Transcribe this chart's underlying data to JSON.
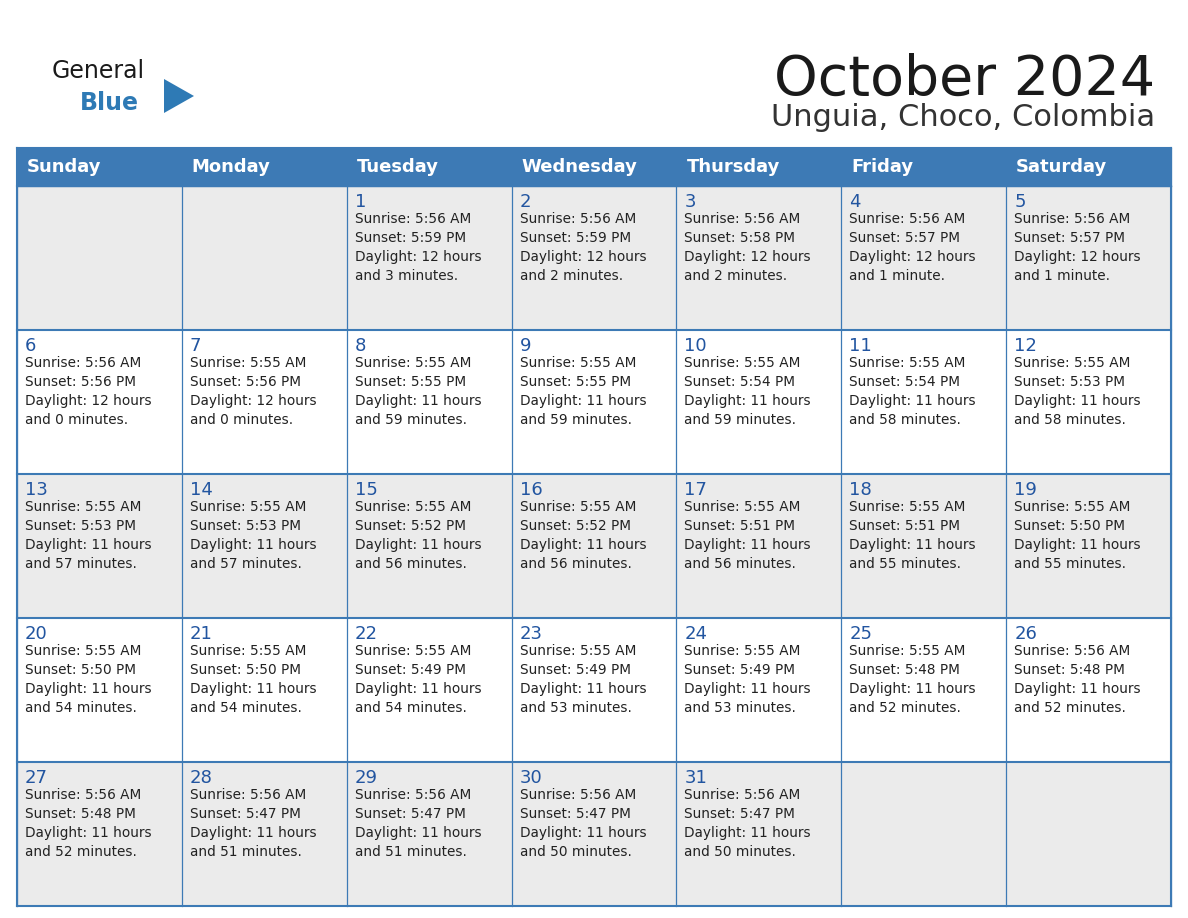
{
  "title": "October 2024",
  "subtitle": "Unguia, Choco, Colombia",
  "header_color": "#3d7ab5",
  "header_text_color": "#ffffff",
  "border_color": "#3d7ab5",
  "day_headers": [
    "Sunday",
    "Monday",
    "Tuesday",
    "Wednesday",
    "Thursday",
    "Friday",
    "Saturday"
  ],
  "title_color": "#1a1a1a",
  "subtitle_color": "#333333",
  "day_number_color": "#2255a0",
  "cell_text_color": "#222222",
  "row_colors": [
    "#ebebeb",
    "#ffffff",
    "#ebebeb",
    "#ffffff",
    "#ebebeb"
  ],
  "logo_general_color": "#1a1a1a",
  "logo_blue_color": "#2e7ab5",
  "logo_triangle_color": "#2e7ab5",
  "calendar_data": [
    [
      {
        "day": "",
        "info": ""
      },
      {
        "day": "",
        "info": ""
      },
      {
        "day": "1",
        "info": "Sunrise: 5:56 AM\nSunset: 5:59 PM\nDaylight: 12 hours\nand 3 minutes."
      },
      {
        "day": "2",
        "info": "Sunrise: 5:56 AM\nSunset: 5:59 PM\nDaylight: 12 hours\nand 2 minutes."
      },
      {
        "day": "3",
        "info": "Sunrise: 5:56 AM\nSunset: 5:58 PM\nDaylight: 12 hours\nand 2 minutes."
      },
      {
        "day": "4",
        "info": "Sunrise: 5:56 AM\nSunset: 5:57 PM\nDaylight: 12 hours\nand 1 minute."
      },
      {
        "day": "5",
        "info": "Sunrise: 5:56 AM\nSunset: 5:57 PM\nDaylight: 12 hours\nand 1 minute."
      }
    ],
    [
      {
        "day": "6",
        "info": "Sunrise: 5:56 AM\nSunset: 5:56 PM\nDaylight: 12 hours\nand 0 minutes."
      },
      {
        "day": "7",
        "info": "Sunrise: 5:55 AM\nSunset: 5:56 PM\nDaylight: 12 hours\nand 0 minutes."
      },
      {
        "day": "8",
        "info": "Sunrise: 5:55 AM\nSunset: 5:55 PM\nDaylight: 11 hours\nand 59 minutes."
      },
      {
        "day": "9",
        "info": "Sunrise: 5:55 AM\nSunset: 5:55 PM\nDaylight: 11 hours\nand 59 minutes."
      },
      {
        "day": "10",
        "info": "Sunrise: 5:55 AM\nSunset: 5:54 PM\nDaylight: 11 hours\nand 59 minutes."
      },
      {
        "day": "11",
        "info": "Sunrise: 5:55 AM\nSunset: 5:54 PM\nDaylight: 11 hours\nand 58 minutes."
      },
      {
        "day": "12",
        "info": "Sunrise: 5:55 AM\nSunset: 5:53 PM\nDaylight: 11 hours\nand 58 minutes."
      }
    ],
    [
      {
        "day": "13",
        "info": "Sunrise: 5:55 AM\nSunset: 5:53 PM\nDaylight: 11 hours\nand 57 minutes."
      },
      {
        "day": "14",
        "info": "Sunrise: 5:55 AM\nSunset: 5:53 PM\nDaylight: 11 hours\nand 57 minutes."
      },
      {
        "day": "15",
        "info": "Sunrise: 5:55 AM\nSunset: 5:52 PM\nDaylight: 11 hours\nand 56 minutes."
      },
      {
        "day": "16",
        "info": "Sunrise: 5:55 AM\nSunset: 5:52 PM\nDaylight: 11 hours\nand 56 minutes."
      },
      {
        "day": "17",
        "info": "Sunrise: 5:55 AM\nSunset: 5:51 PM\nDaylight: 11 hours\nand 56 minutes."
      },
      {
        "day": "18",
        "info": "Sunrise: 5:55 AM\nSunset: 5:51 PM\nDaylight: 11 hours\nand 55 minutes."
      },
      {
        "day": "19",
        "info": "Sunrise: 5:55 AM\nSunset: 5:50 PM\nDaylight: 11 hours\nand 55 minutes."
      }
    ],
    [
      {
        "day": "20",
        "info": "Sunrise: 5:55 AM\nSunset: 5:50 PM\nDaylight: 11 hours\nand 54 minutes."
      },
      {
        "day": "21",
        "info": "Sunrise: 5:55 AM\nSunset: 5:50 PM\nDaylight: 11 hours\nand 54 minutes."
      },
      {
        "day": "22",
        "info": "Sunrise: 5:55 AM\nSunset: 5:49 PM\nDaylight: 11 hours\nand 54 minutes."
      },
      {
        "day": "23",
        "info": "Sunrise: 5:55 AM\nSunset: 5:49 PM\nDaylight: 11 hours\nand 53 minutes."
      },
      {
        "day": "24",
        "info": "Sunrise: 5:55 AM\nSunset: 5:49 PM\nDaylight: 11 hours\nand 53 minutes."
      },
      {
        "day": "25",
        "info": "Sunrise: 5:55 AM\nSunset: 5:48 PM\nDaylight: 11 hours\nand 52 minutes."
      },
      {
        "day": "26",
        "info": "Sunrise: 5:56 AM\nSunset: 5:48 PM\nDaylight: 11 hours\nand 52 minutes."
      }
    ],
    [
      {
        "day": "27",
        "info": "Sunrise: 5:56 AM\nSunset: 5:48 PM\nDaylight: 11 hours\nand 52 minutes."
      },
      {
        "day": "28",
        "info": "Sunrise: 5:56 AM\nSunset: 5:47 PM\nDaylight: 11 hours\nand 51 minutes."
      },
      {
        "day": "29",
        "info": "Sunrise: 5:56 AM\nSunset: 5:47 PM\nDaylight: 11 hours\nand 51 minutes."
      },
      {
        "day": "30",
        "info": "Sunrise: 5:56 AM\nSunset: 5:47 PM\nDaylight: 11 hours\nand 50 minutes."
      },
      {
        "day": "31",
        "info": "Sunrise: 5:56 AM\nSunset: 5:47 PM\nDaylight: 11 hours\nand 50 minutes."
      },
      {
        "day": "",
        "info": ""
      },
      {
        "day": "",
        "info": ""
      }
    ]
  ]
}
